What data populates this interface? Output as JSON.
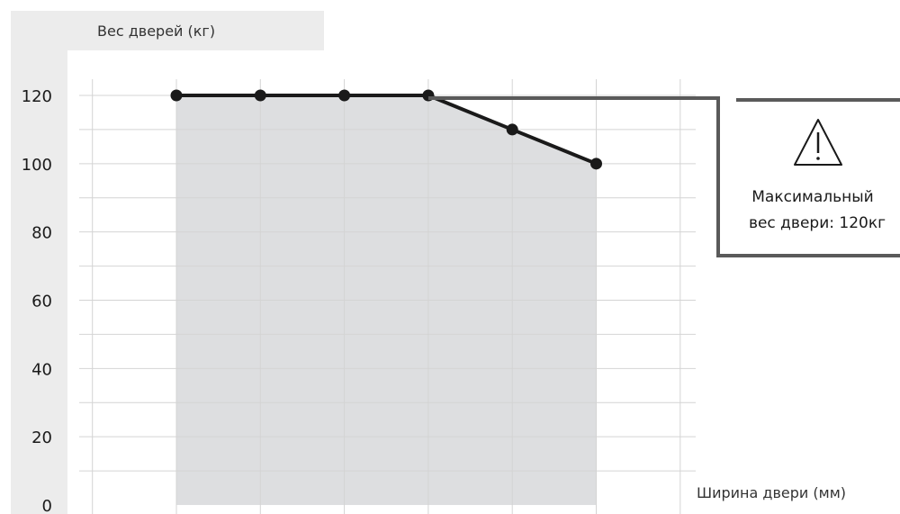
{
  "chart_data": {
    "type": "line",
    "ylabel": "Вес дверей (кг)",
    "xlabel": "Ширина двери (мм)",
    "ylim": [
      0,
      120
    ],
    "yticks": [
      0,
      20,
      40,
      60,
      80,
      100,
      120
    ],
    "x": [
      1,
      2,
      3,
      4,
      5,
      6
    ],
    "series": [
      {
        "values": [
          120,
          120,
          120,
          120,
          110,
          100
        ]
      }
    ],
    "area_fill": true,
    "grid": true,
    "annotation": {
      "line1": "Максимальный",
      "line2": "вес двери: 120кг",
      "icon": "warning-triangle-icon",
      "refers_to_value": 120
    }
  },
  "colors": {
    "line": "#1a1a1a",
    "area": "#dddee0",
    "grid": "#d4d4d4",
    "axis_band": "#ececec",
    "callout": "#5a5a5a"
  }
}
